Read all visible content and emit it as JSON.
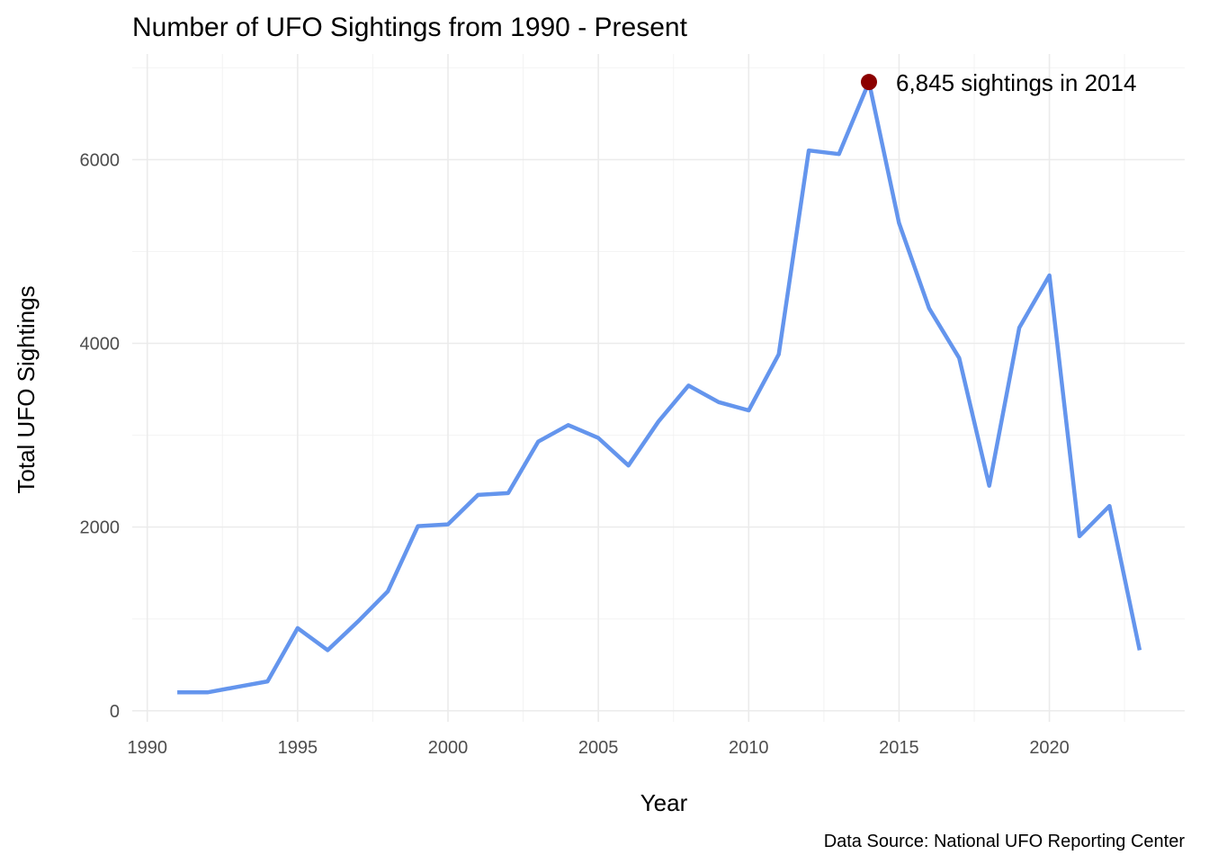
{
  "chart_data": {
    "type": "line",
    "title": "Number of UFO Sightings from 1990 - Present",
    "xlabel": "Year",
    "ylabel": "Total UFO Sightings",
    "caption": "Data Source: National UFO Reporting Center",
    "xlim": [
      1989.5,
      2024.5
    ],
    "ylim": [
      -120,
      7150
    ],
    "x_ticks": [
      1990,
      1995,
      2000,
      2005,
      2010,
      2015,
      2020
    ],
    "x_tick_labels": [
      "1990",
      "1995",
      "2000",
      "2005",
      "2010",
      "2015",
      "2020"
    ],
    "y_ticks": [
      0,
      2000,
      4000,
      6000
    ],
    "y_tick_labels": [
      "0",
      "2000",
      "4000",
      "6000"
    ],
    "grid": true,
    "legend": "none",
    "line_color": "#6495ED",
    "highlight_color": "#8B0000",
    "series": [
      {
        "x": [
          1991,
          1992,
          1993,
          1994,
          1995,
          1996,
          1997,
          1998,
          1999,
          2000,
          2001,
          2002,
          2003,
          2004,
          2005,
          2006,
          2007,
          2008,
          2009,
          2010,
          2011,
          2012,
          2013,
          2014,
          2015,
          2016,
          2017,
          2018,
          2019,
          2020,
          2021,
          2022,
          2023
        ],
        "values": [
          200,
          200,
          260,
          320,
          900,
          660,
          970,
          1300,
          2010,
          2030,
          2350,
          2370,
          2930,
          3110,
          2970,
          2670,
          3150,
          3540,
          3360,
          3270,
          3880,
          6100,
          6060,
          6845,
          5310,
          4380,
          3840,
          2450,
          4170,
          4740,
          1900,
          2230,
          660
        ]
      }
    ],
    "annotation": {
      "x": 2014,
      "y": 6845,
      "text": "6,845 sightings in 2014"
    }
  }
}
